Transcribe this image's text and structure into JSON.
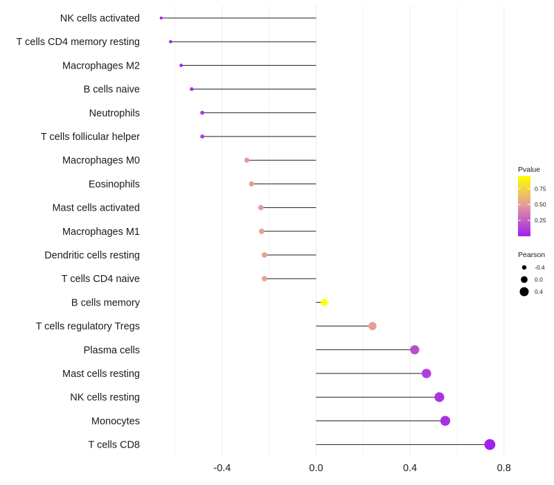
{
  "chart_data": {
    "type": "lollipop",
    "title": "",
    "xlabel": "",
    "ylabel": "",
    "xlim": [
      -0.77,
      0.8
    ],
    "x_ticks": [
      {
        "value": -0.4,
        "label": "-0.4"
      },
      {
        "value": 0.0,
        "label": "0.0"
      },
      {
        "value": 0.4,
        "label": "0.4"
      },
      {
        "value": 0.8,
        "label": "0.8"
      }
    ],
    "grid": true,
    "categories": [
      "NK cells activated",
      "T cells CD4 memory resting",
      "Macrophages M2",
      "B cells naive",
      "Neutrophils",
      "T cells follicular helper",
      "Macrophages M0",
      "Eosinophils",
      "Mast cells activated",
      "Macrophages M1",
      "Dendritic cells resting",
      "T cells CD4 naive",
      "B cells memory",
      "T cells regulatory  Tregs",
      "Plasma cells",
      "Mast cells resting",
      "NK cells resting",
      "Monocytes",
      "T cells CD8"
    ],
    "pearson": [
      -0.66,
      -0.62,
      -0.575,
      -0.53,
      -0.485,
      -0.485,
      -0.295,
      -0.275,
      -0.235,
      -0.232,
      -0.22,
      -0.22,
      0.035,
      0.24,
      0.42,
      0.47,
      0.525,
      0.55,
      0.74
    ],
    "pvalue": [
      0.01,
      0.02,
      0.05,
      0.06,
      0.09,
      0.1,
      0.48,
      0.5,
      0.5,
      0.52,
      0.52,
      0.52,
      0.95,
      0.5,
      0.18,
      0.12,
      0.08,
      0.06,
      0.01
    ],
    "legend": {
      "color": {
        "title": "Pvalue",
        "range": [
          0.0,
          0.95
        ],
        "ticks": [
          {
            "value": 0.75,
            "label": "0.75"
          },
          {
            "value": 0.5,
            "label": "0.50"
          },
          {
            "value": 0.25,
            "label": "0.25"
          }
        ],
        "low_color": "#a020f0",
        "mid_color": "#e69b9b",
        "high_color": "#ffff00"
      },
      "size": {
        "title": "Pearson",
        "entries": [
          {
            "value": -0.4,
            "label": "-0.4"
          },
          {
            "value": 0.0,
            "label": "0.0"
          },
          {
            "value": 0.4,
            "label": "0.4"
          }
        ]
      },
      "position": "right"
    },
    "segment_color": "#1a1a1a",
    "grid_color": "#ebebeb"
  }
}
